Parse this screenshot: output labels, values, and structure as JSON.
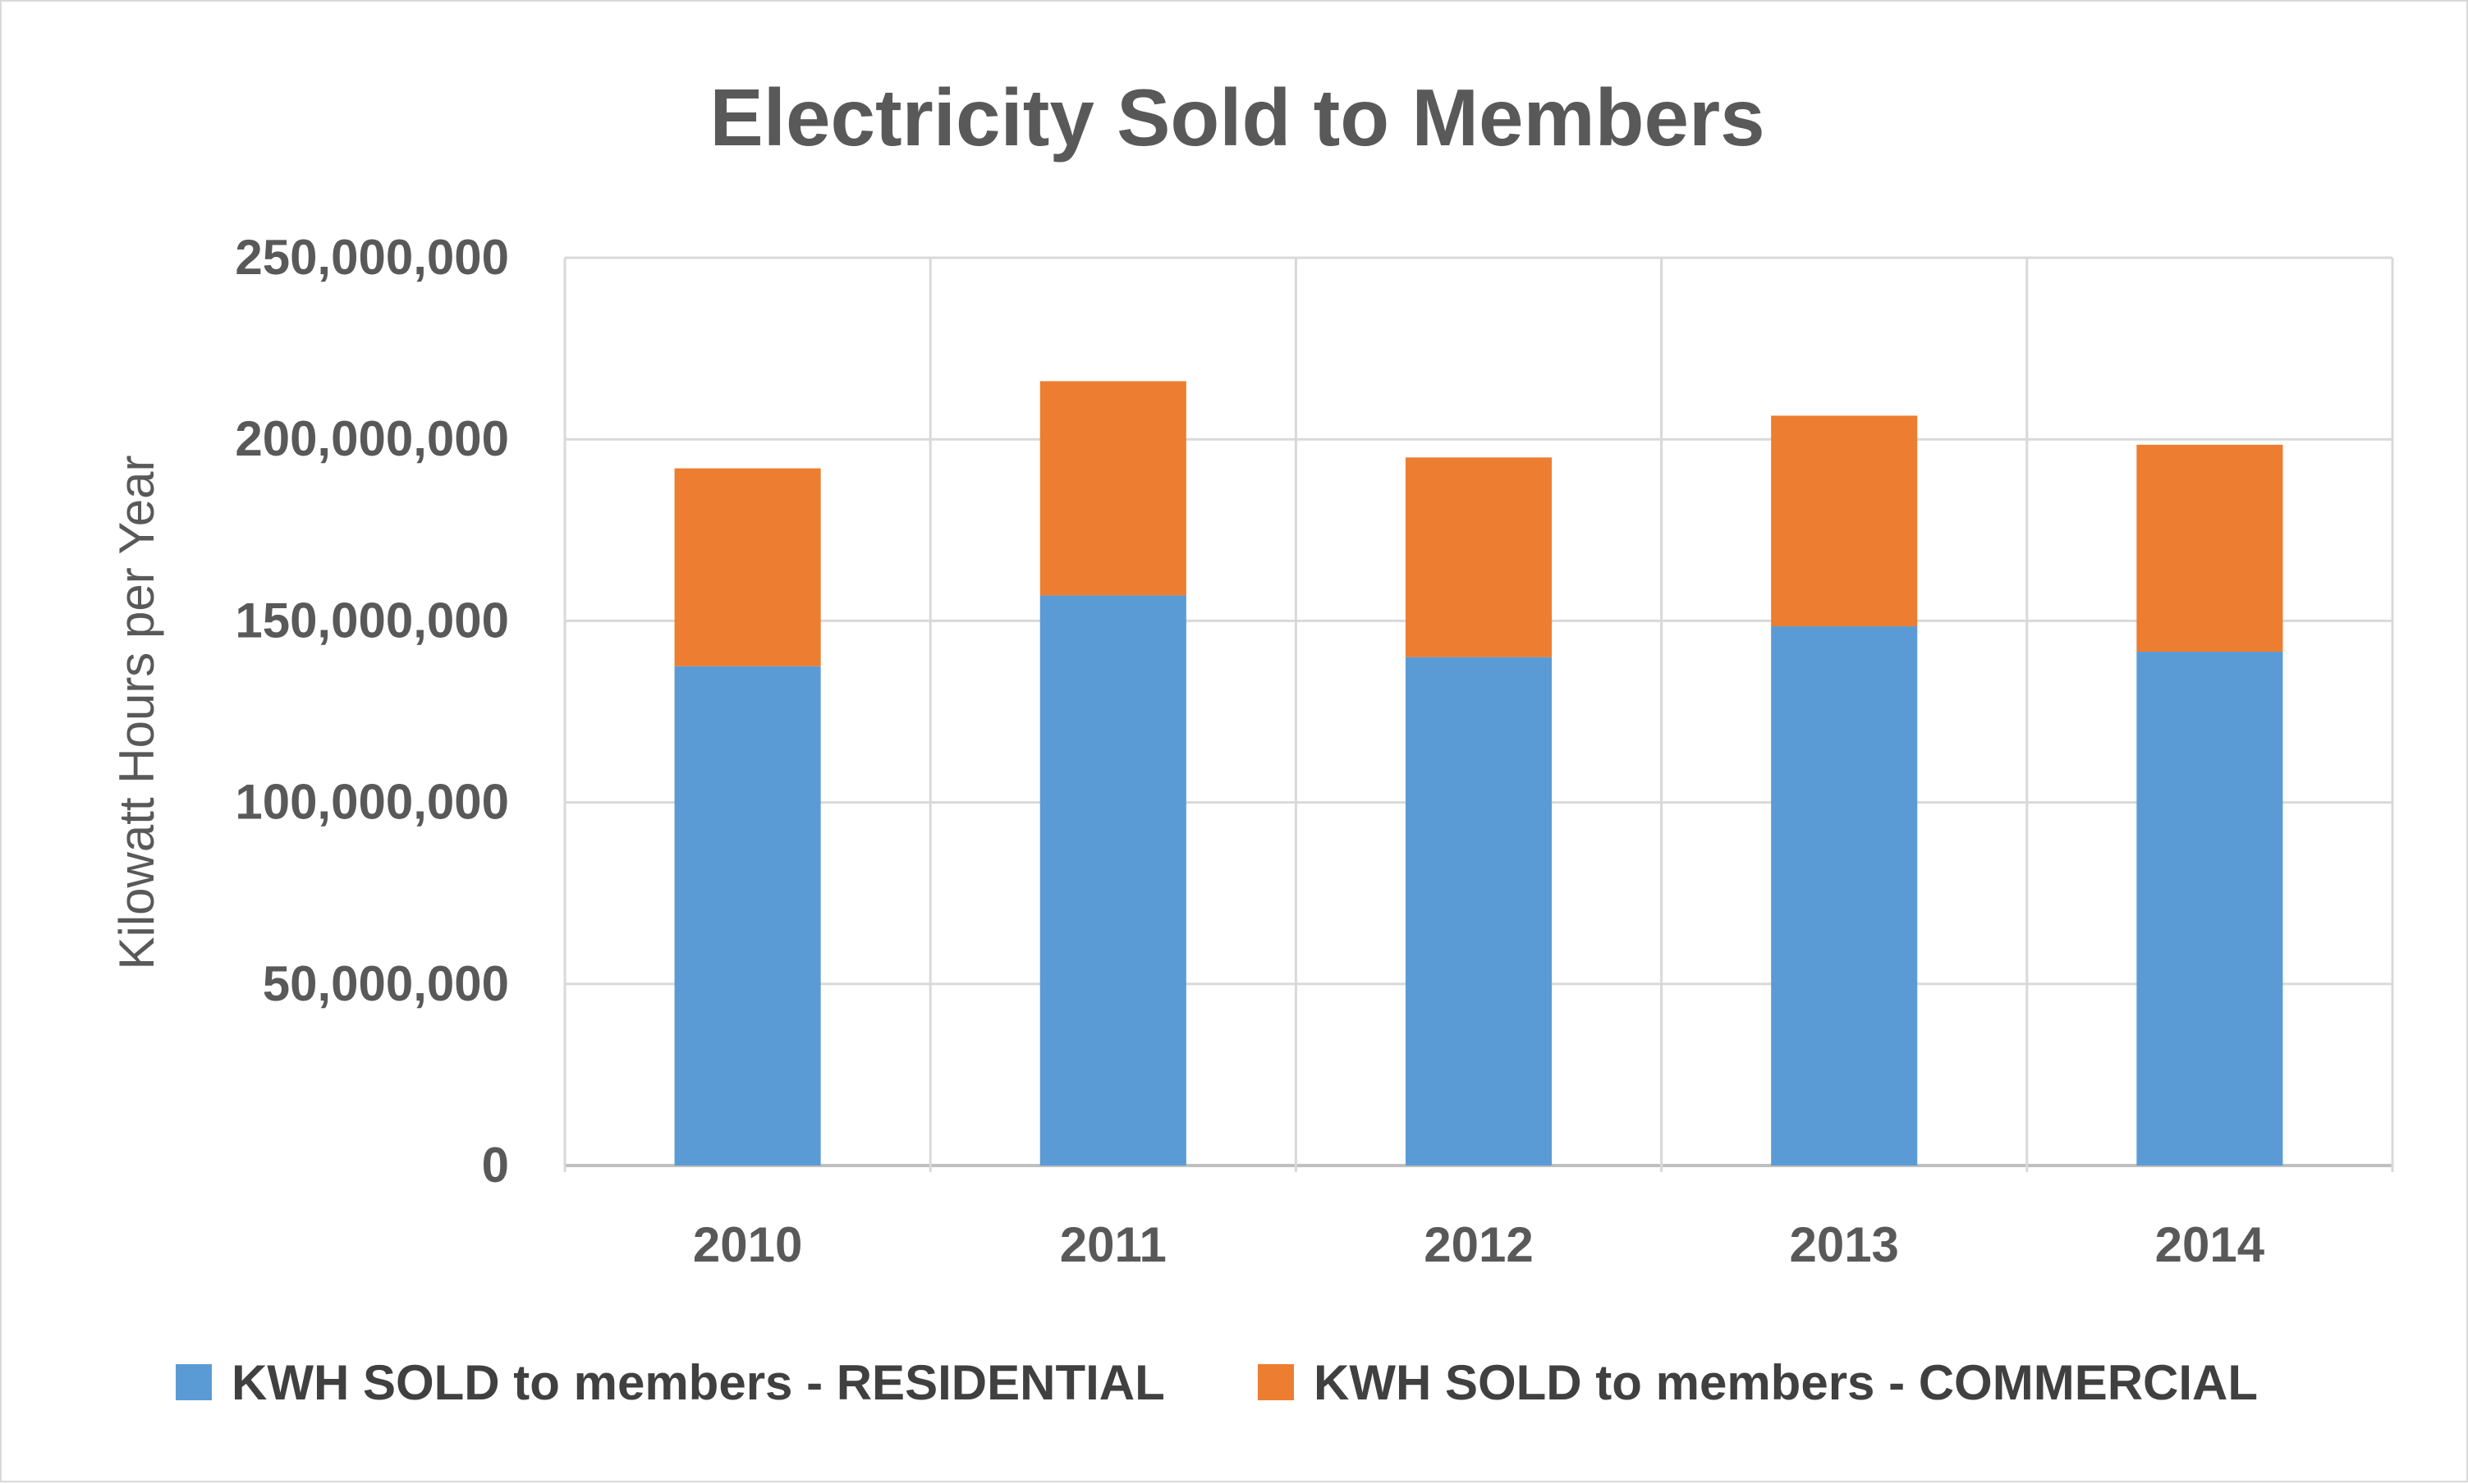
{
  "chart_data": {
    "type": "bar",
    "stacked": true,
    "title": "Electricity Sold to Members",
    "xlabel": "",
    "ylabel": "Kilowatt Hours per Year",
    "ylim": [
      0,
      250000000
    ],
    "yticks": [
      0,
      50000000,
      100000000,
      150000000,
      200000000,
      250000000
    ],
    "ytick_labels": [
      "0",
      "50,000,000",
      "100,000,000",
      "150,000,000",
      "200,000,000",
      "250,000,000"
    ],
    "categories": [
      "2010",
      "2011",
      "2012",
      "2013",
      "2014"
    ],
    "series": [
      {
        "name": "KWH SOLD to members - RESIDENTIAL",
        "color": "#5b9bd5",
        "values": [
          137500000,
          157000000,
          140000000,
          148500000,
          141500000
        ]
      },
      {
        "name": "KWH SOLD to members - COMMERCIAL",
        "color": "#ed7d31",
        "values": [
          54500000,
          59000000,
          55000000,
          58000000,
          57000000
        ]
      }
    ],
    "grid": true,
    "legend_position": "bottom"
  }
}
